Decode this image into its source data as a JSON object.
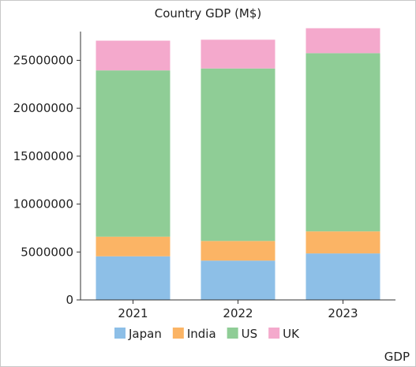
{
  "page": {
    "footer_label": "GDP"
  },
  "chart_data": {
    "type": "bar",
    "stacked": true,
    "title": "Country GDP (M$)",
    "categories": [
      "2021",
      "2022",
      "2023"
    ],
    "series": [
      {
        "name": "Japan",
        "color": "#8dbfe7",
        "values": [
          4550000,
          4100000,
          4850000
        ]
      },
      {
        "name": "India",
        "color": "#fbb465",
        "values": [
          2050000,
          2050000,
          2300000
        ]
      },
      {
        "name": "US",
        "color": "#8fcd96",
        "values": [
          17350000,
          18000000,
          18600000
        ]
      },
      {
        "name": "UK",
        "color": "#f4a9cc",
        "values": [
          3100000,
          3000000,
          2600000
        ]
      }
    ],
    "yticks": [
      "0",
      "5000000",
      "10000000",
      "15000000",
      "20000000",
      "25000000"
    ],
    "ylim": [
      0,
      28000000
    ],
    "legend_position": "bottom",
    "grid": false
  }
}
